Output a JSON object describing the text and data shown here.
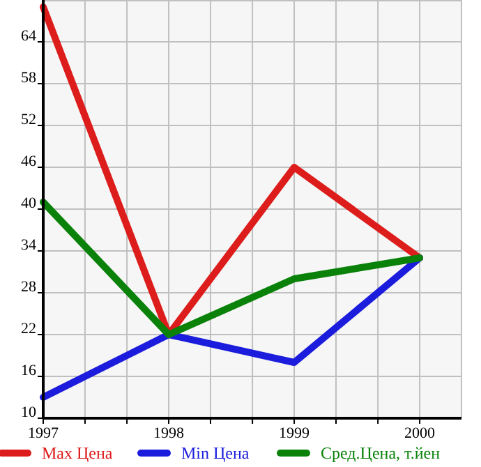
{
  "chart_data": {
    "type": "line",
    "x": [
      1997,
      1998,
      1999,
      2000
    ],
    "series": [
      {
        "name": "Max Цена",
        "color": "#dd1c1c",
        "values": [
          69,
          22,
          46,
          33
        ]
      },
      {
        "name": "Min Цена",
        "color": "#1c1cdd",
        "values": [
          13,
          22,
          18,
          33
        ]
      },
      {
        "name": "Сред.Цена, т.йен",
        "color": "#0a820a",
        "values": [
          41,
          22,
          30,
          33
        ]
      }
    ],
    "xlim": [
      1997,
      2000.333
    ],
    "xticks": [
      1997,
      {
        "value": 1997.333,
        "label": null
      },
      {
        "value": 1997.667,
        "label": null
      },
      1998,
      {
        "value": 1998.333,
        "label": null
      },
      {
        "value": 1998.667,
        "label": null
      },
      1999,
      {
        "value": 1999.333,
        "label": null
      },
      {
        "value": 1999.667,
        "label": null
      },
      2000
    ],
    "ylim": [
      10,
      70
    ],
    "yticks": [
      10,
      16,
      22,
      28,
      34,
      40,
      46,
      52,
      58,
      64
    ],
    "grid": true,
    "legend": "bottom",
    "marker": "none",
    "line_style": "solid"
  }
}
